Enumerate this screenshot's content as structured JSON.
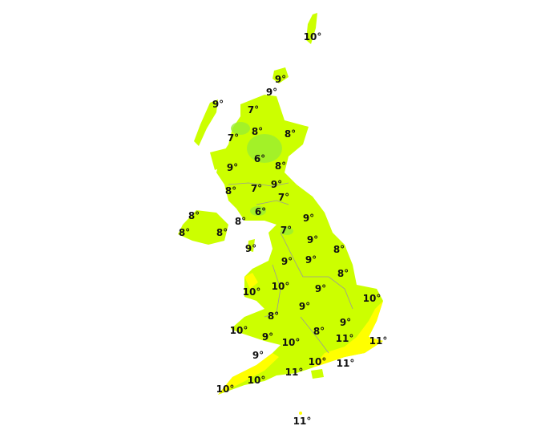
{
  "colors": {
    "land_base": "#ccff00",
    "warm": "#ffff00",
    "cool": "#99ee33",
    "boundary": "#999999"
  },
  "temperature_labels": [
    "10°",
    "9°",
    "9°",
    "9°",
    "7°",
    "8°",
    "8°",
    "7°",
    "6°",
    "8°",
    "9°",
    "9°",
    "7°",
    "8°",
    "7°",
    "8°",
    "6°",
    "9°",
    "8°",
    "8°",
    "8°",
    "7°",
    "9°",
    "9°",
    "8°",
    "9°",
    "9°",
    "8°",
    "10°",
    "9°",
    "10°",
    "10°",
    "9°",
    "8°",
    "9°",
    "10°",
    "9°",
    "8°",
    "11°",
    "10°",
    "11°",
    "9°",
    "10°",
    "11°",
    "11°",
    "10°",
    "10°",
    "11°"
  ]
}
